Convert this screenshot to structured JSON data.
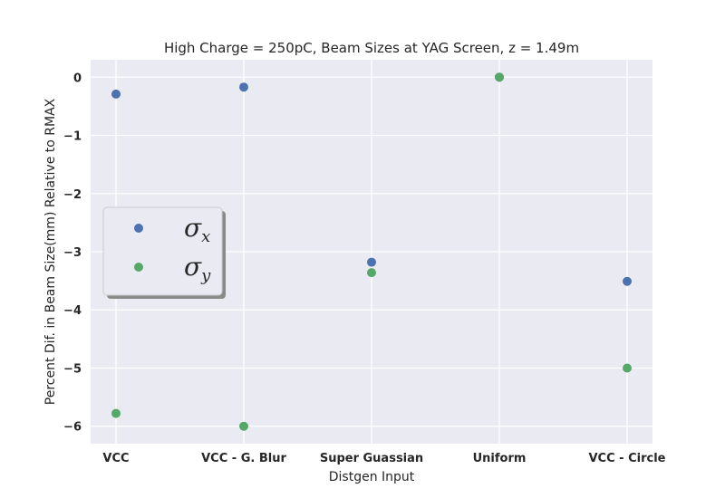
{
  "chart_data": {
    "type": "scatter",
    "title": "High Charge = 250pC, Beam Sizes at YAG Screen, z = 1.49m",
    "xlabel": "Distgen Input",
    "ylabel": "Percent Dif. in Beam Size(mm) Relative to RMAX",
    "categories": [
      "VCC",
      "VCC - G. Blur",
      "Super Guassian",
      "Uniform",
      "VCC - Circle"
    ],
    "ylim": [
      -6.3,
      0.3
    ],
    "yticks": [
      0,
      -1,
      -2,
      -3,
      -4,
      -5,
      -6
    ],
    "ytick_labels": [
      "0",
      "−1",
      "−2",
      "−3",
      "−4",
      "−5",
      "−6"
    ],
    "grid": true,
    "legend_position": "center-left",
    "series": [
      {
        "name": "σ",
        "subscript": "x",
        "color": "#4c72b0",
        "values": [
          -0.29,
          -0.17,
          -3.18,
          0.0,
          -3.51
        ]
      },
      {
        "name": "σ",
        "subscript": "y",
        "color": "#55a868",
        "values": [
          -5.78,
          -6.0,
          -3.36,
          0.0,
          -5.0
        ]
      }
    ]
  },
  "style": {
    "plot_background": "#eaeaf2",
    "grid_color": "#ffffff",
    "text_color": "#262626"
  }
}
